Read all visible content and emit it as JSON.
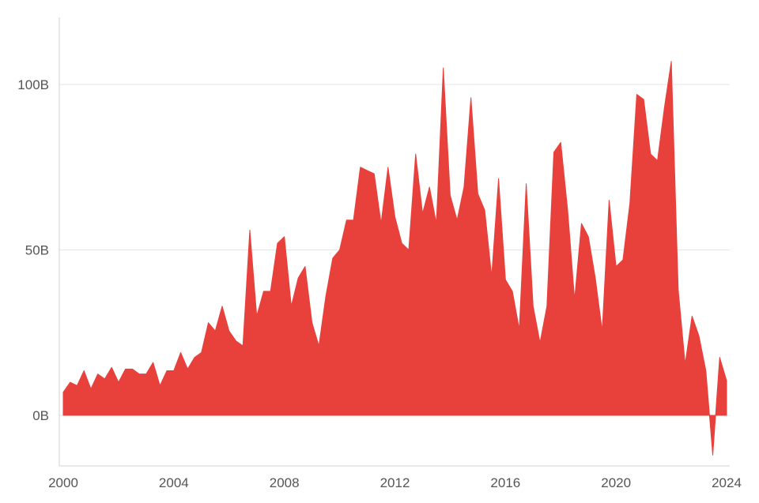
{
  "chart_data": {
    "type": "area",
    "title": "",
    "xlabel": "",
    "ylabel": "",
    "xlim": [
      2000,
      2024
    ],
    "ylim": [
      -15,
      120
    ],
    "x_ticks": [
      2000,
      2004,
      2008,
      2012,
      2016,
      2020,
      2024
    ],
    "x_tick_labels": [
      "2000",
      "2004",
      "2008",
      "2012",
      "2016",
      "2020",
      "2024"
    ],
    "y_ticks": [
      0,
      50,
      100
    ],
    "y_tick_labels": [
      "0B",
      "50B",
      "100B"
    ],
    "grid": true,
    "legend": "none",
    "colors": {
      "fill": "#e8413c",
      "grid": "#e4e4e4",
      "axis": "#d0d0d0",
      "text": "#555555"
    },
    "series": [
      {
        "x": [
          2000.0,
          2000.25,
          2000.5,
          2000.75,
          2001.0,
          2001.25,
          2001.5,
          2001.75,
          2002.0,
          2002.25,
          2002.5,
          2002.75,
          2003.0,
          2003.25,
          2003.5,
          2003.75,
          2004.0,
          2004.25,
          2004.5,
          2004.75,
          2005.0,
          2005.25,
          2005.5,
          2005.75,
          2006.0,
          2006.25,
          2006.5,
          2006.75,
          2007.0,
          2007.25,
          2007.5,
          2007.75,
          2008.0,
          2008.25,
          2008.5,
          2008.75,
          2009.0,
          2009.25,
          2009.5,
          2009.75,
          2010.0,
          2010.25,
          2010.5,
          2010.75,
          2011.0,
          2011.25,
          2011.5,
          2011.75,
          2012.0,
          2012.25,
          2012.5,
          2012.75,
          2013.0,
          2013.25,
          2013.5,
          2013.75,
          2014.0,
          2014.25,
          2014.5,
          2014.75,
          2015.0,
          2015.25,
          2015.5,
          2015.75,
          2016.0,
          2016.25,
          2016.5,
          2016.75,
          2017.0,
          2017.25,
          2017.5,
          2017.75,
          2018.0,
          2018.25,
          2018.5,
          2018.75,
          2019.0,
          2019.25,
          2019.5,
          2019.75,
          2020.0,
          2020.25,
          2020.5,
          2020.75,
          2021.0,
          2021.25,
          2021.5,
          2021.75,
          2022.0,
          2022.25,
          2022.5,
          2022.75,
          2023.0,
          2023.25,
          2023.5,
          2023.75,
          2024.0
        ],
        "values": [
          7,
          10,
          9,
          13.5,
          8,
          12.5,
          11,
          14.5,
          10,
          14,
          14,
          12.5,
          12.5,
          16,
          9,
          13.5,
          13.5,
          19,
          14,
          17.5,
          19,
          28,
          25.5,
          33,
          25.5,
          22.5,
          21,
          56,
          30,
          37.5,
          37.5,
          52,
          54,
          33,
          41.5,
          45,
          28,
          21,
          36,
          47.5,
          50,
          59,
          59,
          75,
          74,
          73,
          58,
          75,
          60,
          52,
          50,
          79,
          61,
          69,
          58,
          105,
          66.5,
          59,
          69,
          96,
          67,
          62,
          42,
          71.5,
          41,
          37.5,
          26,
          70,
          33,
          22,
          33,
          79.5,
          82.5,
          62,
          35,
          58,
          54,
          41.5,
          25.5,
          65,
          45,
          47,
          64,
          97,
          95.5,
          79,
          77,
          93,
          107,
          38,
          15.5,
          30,
          24,
          13.5,
          -12,
          17.5,
          10.5
        ]
      }
    ]
  }
}
